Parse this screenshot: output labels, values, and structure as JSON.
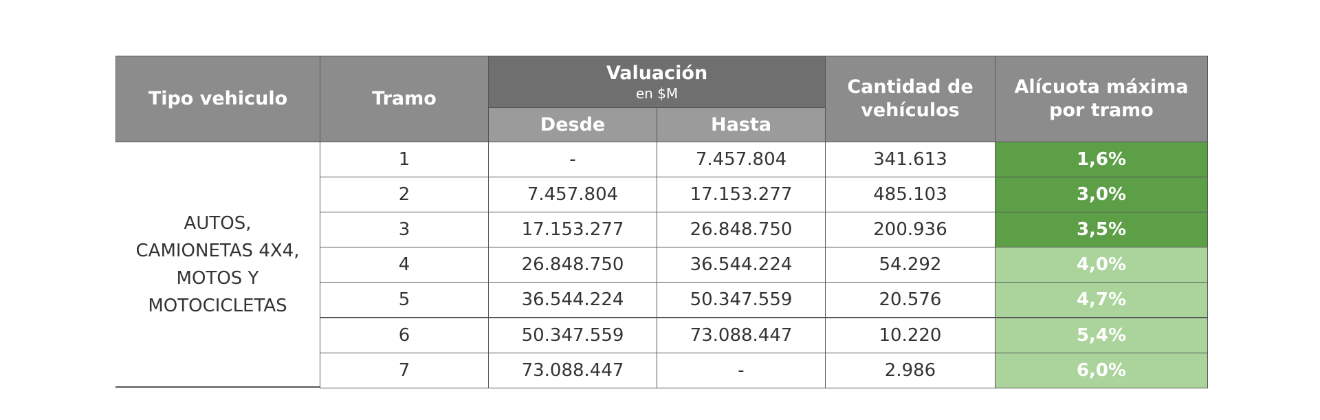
{
  "table": {
    "header": {
      "tipo": "Tipo vehiculo",
      "tramo": "Tramo",
      "valuacion": "Valuación",
      "valuacion_unit": "en $M",
      "desde": "Desde",
      "hasta": "Hasta",
      "cantidad": "Cantidad de vehículos",
      "alicuota": "Alícuota máxima por tramo"
    },
    "tipo_vehiculo": "AUTOS, CAMIONETAS 4X4, MOTOS Y MOTOCICLETAS",
    "rows": [
      {
        "tramo": "1",
        "desde": "-",
        "hasta": "7.457.804",
        "cantidad": "341.613",
        "alicuota": "1,6%",
        "color": "#5c9f46"
      },
      {
        "tramo": "2",
        "desde": "7.457.804",
        "hasta": "17.153.277",
        "cantidad": "485.103",
        "alicuota": "3,0%",
        "color": "#5c9f46"
      },
      {
        "tramo": "3",
        "desde": "17.153.277",
        "hasta": "26.848.750",
        "cantidad": "200.936",
        "alicuota": "3,5%",
        "color": "#5c9f46"
      },
      {
        "tramo": "4",
        "desde": "26.848.750",
        "hasta": "36.544.224",
        "cantidad": "54.292",
        "alicuota": "4,0%",
        "color": "#aad49b"
      },
      {
        "tramo": "5",
        "desde": "36.544.224",
        "hasta": "50.347.559",
        "cantidad": "20.576",
        "alicuota": "4,7%",
        "color": "#aad49b"
      },
      {
        "tramo": "6",
        "desde": "50.347.559",
        "hasta": "73.088.447",
        "cantidad": "10.220",
        "alicuota": "5,4%",
        "color": "#aad49b"
      },
      {
        "tramo": "7",
        "desde": "73.088.447",
        "hasta": "-",
        "cantidad": "2.986",
        "alicuota": "6,0%",
        "color": "#aad49b"
      }
    ]
  }
}
